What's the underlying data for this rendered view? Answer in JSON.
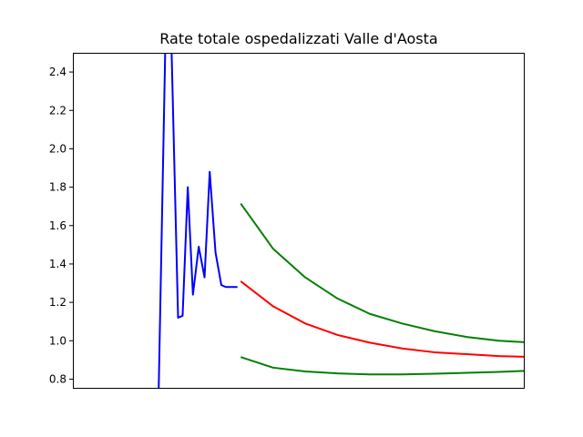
{
  "chart_data": {
    "type": "line",
    "title": "Rate totale ospedalizzati Valle d'Aosta",
    "xlabel": "",
    "ylabel": "",
    "x_ticks_visible": false,
    "xlim": [
      0,
      70
    ],
    "ylim": [
      0.75,
      2.5
    ],
    "y_ticks": [
      "0.8",
      "1.0",
      "1.2",
      "1.4",
      "1.6",
      "1.8",
      "2.0",
      "2.2",
      "2.4"
    ],
    "grid": false,
    "series": [
      {
        "color": "#0000ff",
        "x": [
          13.3,
          14.3,
          15.3,
          16.3,
          17.0,
          17.8,
          18.6,
          19.5,
          20.4,
          21.2,
          22.1,
          23.0,
          23.7,
          24.7,
          25.5
        ],
        "y": [
          0.75,
          2.5,
          2.5,
          1.12,
          1.13,
          1.8,
          1.24,
          1.49,
          1.33,
          1.88,
          1.46,
          1.29,
          1.28,
          1.28,
          1.28
        ],
        "note_points": "clipped at axis limits"
      },
      {
        "color": "#008000",
        "x": [
          26,
          31,
          36,
          41,
          46,
          51,
          56,
          61,
          66,
          71.4
        ],
        "y": [
          1.715,
          1.48,
          1.33,
          1.22,
          1.14,
          1.09,
          1.05,
          1.02,
          1.0,
          0.99
        ]
      },
      {
        "color": "#ff0000",
        "x": [
          26,
          31,
          36,
          41,
          46,
          51,
          56,
          61,
          66,
          71.4
        ],
        "y": [
          1.31,
          1.18,
          1.09,
          1.03,
          0.99,
          0.96,
          0.94,
          0.93,
          0.92,
          0.915
        ]
      },
      {
        "color": "#008000",
        "x": [
          26,
          31,
          36,
          41,
          46,
          51,
          56,
          61,
          66,
          71.4
        ],
        "y": [
          0.915,
          0.86,
          0.84,
          0.83,
          0.825,
          0.825,
          0.828,
          0.833,
          0.838,
          0.845
        ]
      }
    ]
  }
}
